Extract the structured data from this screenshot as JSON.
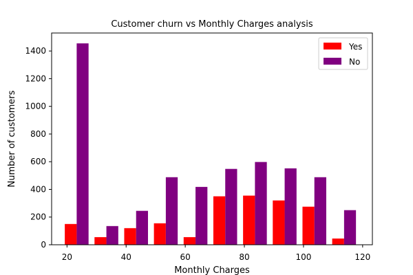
{
  "chart_data": {
    "type": "bar",
    "title": "Customer churn vs Monthly Charges analysis",
    "xlabel": "Monthly Charges",
    "ylabel": "Number of customers",
    "xlim": [
      14.8,
      123.3
    ],
    "ylim": [
      0,
      1530
    ],
    "xticks": [
      20,
      40,
      60,
      80,
      100,
      120
    ],
    "yticks": [
      0,
      200,
      400,
      600,
      800,
      1000,
      1200,
      1400
    ],
    "bin_edges": [
      18.25,
      28.3,
      38.35,
      48.4,
      58.45,
      68.5,
      78.55,
      88.6,
      98.65,
      108.7,
      118.75
    ],
    "series": [
      {
        "name": "Yes",
        "color": "#ff0000",
        "values": [
          150,
          55,
          120,
          155,
          55,
          350,
          355,
          320,
          275,
          45
        ]
      },
      {
        "name": "No",
        "color": "#800080",
        "values": [
          1455,
          135,
          245,
          488,
          418,
          548,
          598,
          552,
          488,
          250
        ]
      }
    ],
    "legend_position": "top-right",
    "grid": false
  }
}
